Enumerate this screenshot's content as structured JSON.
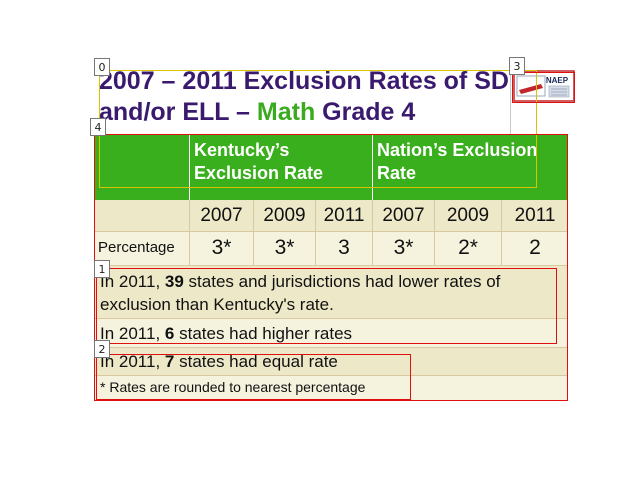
{
  "title": {
    "part1": "2007 – 2011 Exclusion Rates of SD and/or ELL – ",
    "math": "Math",
    "part2": " Grade 4"
  },
  "logo": {
    "label": "NAEP",
    "icon": "naep-report-card-logo"
  },
  "table": {
    "header_ky": "Kentucky’s Exclusion Rate",
    "header_nation": "Nation’s Exclusion Rate",
    "years": [
      "2007",
      "2009",
      "2011",
      "2007",
      "2009",
      "2011"
    ],
    "row_label": "Percentage",
    "values": [
      "3*",
      "3*",
      "3",
      "3*",
      "2*",
      "2"
    ]
  },
  "notes": {
    "lower_pre": "In 2011, ",
    "lower_num": "39",
    "lower_post": " states and jurisdictions had lower rates of exclusion than Kentucky's rate.",
    "higher_pre": "In 2011, ",
    "higher_num": "6",
    "higher_post": " states had higher rates",
    "equal_pre": "In 2011, ",
    "equal_num": "7",
    "equal_post": " states had equal rate",
    "footnote": "* Rates are rounded to nearest percentage"
  },
  "markers": [
    "0",
    "1",
    "2",
    "3",
    "4"
  ],
  "colors": {
    "title": "#3a1a6e",
    "math": "#3aaa1e",
    "header_green": "#3aaf1e",
    "row_beige": "#ede8c8",
    "row_light": "#f5f2de",
    "box_yellow": "#d8c400",
    "box_red": "#e01010"
  }
}
